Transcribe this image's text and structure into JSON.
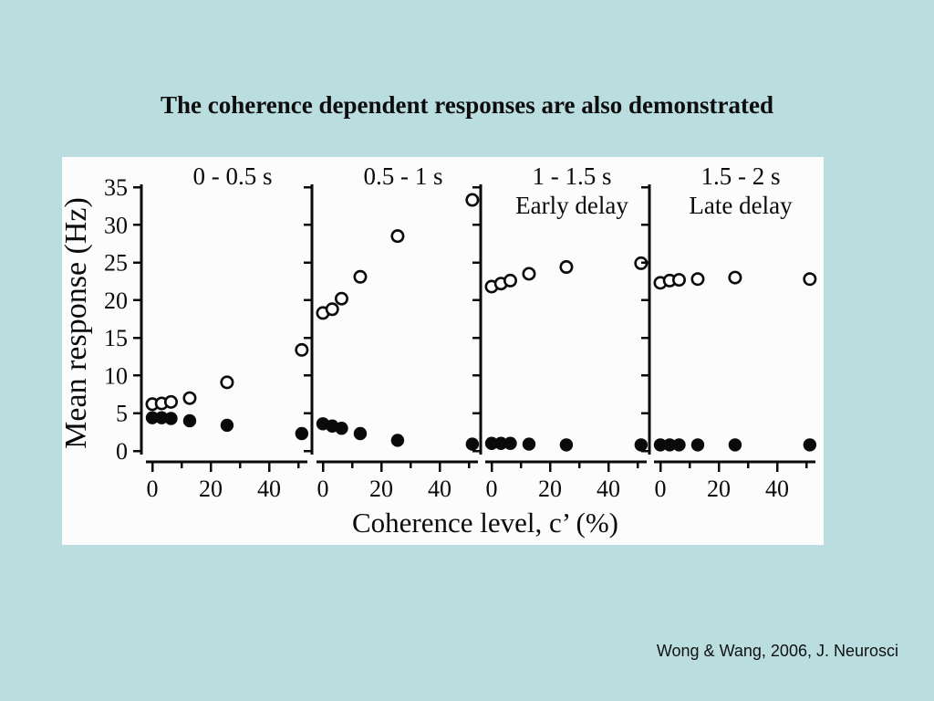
{
  "slide": {
    "title": "The coherence dependent responses are also demonstrated",
    "citation": "Wong & Wang, 2006, J. Neurosci",
    "background_color": "#badde0",
    "figure_background": "#fcfcfc"
  },
  "chart_data": {
    "type": "scatter",
    "title": "",
    "xlabel": "Coherence level, c’ (%)",
    "ylabel": "Mean response (Hz)",
    "ylim": [
      0,
      35
    ],
    "yticks": [
      0,
      5,
      10,
      15,
      20,
      25,
      30,
      35
    ],
    "xticks_all": [
      0,
      10,
      20,
      30,
      40,
      50
    ],
    "xticks_labeled": [
      0,
      20,
      40
    ],
    "grid": "off",
    "legend": "none",
    "x": [
      0,
      3.2,
      6.4,
      12.8,
      25.6,
      51.2
    ],
    "marker_style": {
      "open_fill": "#ffffff",
      "filled_fill": "#0a0a0a",
      "stroke": "#0a0a0a",
      "axis_color": "#0a0a0a"
    },
    "panels": [
      {
        "title": "0 - 0.5 s",
        "subtitle": "",
        "series": [
          {
            "name": "open-circles",
            "marker": "open",
            "values": [
              6.2,
              6.3,
              6.5,
              7.0,
              9.1,
              13.4
            ]
          },
          {
            "name": "filled-circles",
            "marker": "filled",
            "values": [
              4.4,
              4.4,
              4.3,
              4.0,
              3.4,
              2.3
            ]
          }
        ]
      },
      {
        "title": "0.5 - 1 s",
        "subtitle": "",
        "series": [
          {
            "name": "open-circles",
            "marker": "open",
            "values": [
              18.3,
              18.8,
              20.2,
              23.1,
              28.5,
              33.3
            ]
          },
          {
            "name": "filled-circles",
            "marker": "filled",
            "values": [
              3.6,
              3.3,
              3.0,
              2.3,
              1.4,
              0.9
            ]
          }
        ]
      },
      {
        "title": "1 - 1.5 s",
        "subtitle": "Early delay",
        "series": [
          {
            "name": "open-circles",
            "marker": "open",
            "values": [
              21.8,
              22.2,
              22.6,
              23.5,
              24.4,
              24.9
            ]
          },
          {
            "name": "filled-circles",
            "marker": "filled",
            "values": [
              1.0,
              1.0,
              1.0,
              0.9,
              0.8,
              0.8
            ]
          }
        ]
      },
      {
        "title": "1.5 - 2 s",
        "subtitle": "Late delay",
        "series": [
          {
            "name": "open-circles",
            "marker": "open",
            "values": [
              22.3,
              22.6,
              22.7,
              22.8,
              23.0,
              22.8
            ]
          },
          {
            "name": "filled-circles",
            "marker": "filled",
            "values": [
              0.8,
              0.8,
              0.8,
              0.8,
              0.8,
              0.8
            ]
          }
        ]
      }
    ]
  }
}
